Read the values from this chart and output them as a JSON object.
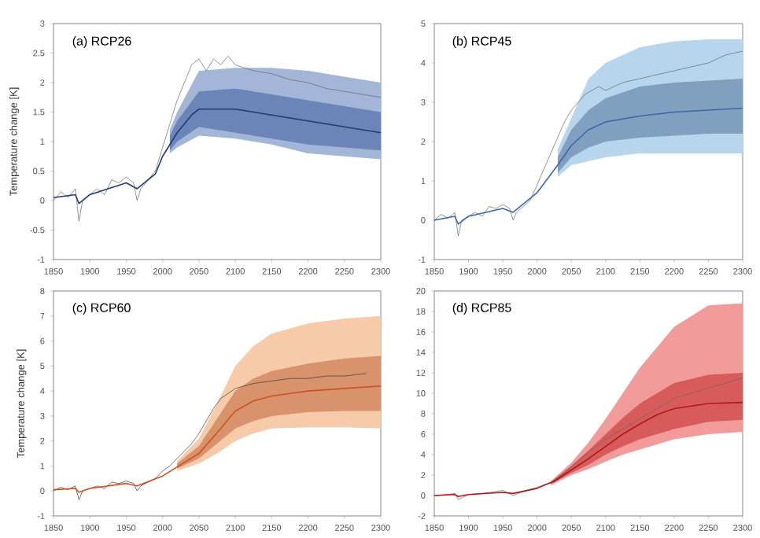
{
  "chart_data": [
    {
      "type": "line",
      "title": "(a) RCP26",
      "ylabel": "Temperature change [K]",
      "xlim": [
        1850,
        2300
      ],
      "ylim": [
        -1,
        3
      ],
      "xticks": [
        1850,
        1900,
        1950,
        2000,
        2050,
        2100,
        2150,
        2200,
        2250,
        2300
      ],
      "yticks": [
        -1,
        -0.5,
        0,
        0.5,
        1,
        1.5,
        2,
        2.5,
        3
      ],
      "series": [
        {
          "color": "#a3b6d8",
          "x": [
            2010,
            2020,
            2050,
            2100,
            2150,
            2200,
            2250,
            2300
          ],
          "values": [
            null,
            null,
            null,
            null,
            null,
            null,
            null,
            null
          ],
          "lower": [
            0.8,
            0.9,
            1.1,
            1.05,
            0.95,
            0.8,
            0.75,
            0.7
          ],
          "upper": [
            1.2,
            1.5,
            2.2,
            2.25,
            2.25,
            2.2,
            2.1,
            2.0
          ]
        },
        {
          "color": "#6b85b9",
          "x": [
            2010,
            2020,
            2050,
            2100,
            2150,
            2200,
            2250,
            2300
          ],
          "values": [
            null,
            null,
            null,
            null,
            null,
            null,
            null,
            null
          ],
          "lower": [
            0.85,
            1.0,
            1.25,
            1.15,
            1.05,
            0.95,
            0.9,
            0.85
          ],
          "upper": [
            1.1,
            1.35,
            1.85,
            1.9,
            1.8,
            1.7,
            1.6,
            1.5
          ]
        },
        {
          "color": "#666666",
          "x": [
            1850,
            1860,
            1870,
            1880,
            1885,
            1890,
            1900,
            1910,
            1920,
            1930,
            1940,
            1950,
            1960,
            1965,
            1970,
            1980,
            1990,
            2000,
            2010,
            2020,
            2030,
            2040,
            2050,
            2060,
            2070,
            2080,
            2090,
            2100,
            2125,
            2150,
            2175,
            2200,
            2225,
            2250,
            2275,
            2300
          ],
          "values": [
            0.0,
            0.15,
            0.05,
            0.2,
            -0.35,
            0.0,
            0.1,
            0.2,
            0.1,
            0.35,
            0.3,
            0.4,
            0.3,
            0.0,
            0.2,
            0.35,
            0.5,
            0.9,
            1.3,
            1.7,
            2.0,
            2.3,
            2.4,
            2.2,
            2.4,
            2.3,
            2.45,
            2.3,
            2.2,
            2.15,
            2.05,
            2.0,
            1.9,
            1.85,
            1.8,
            1.75
          ]
        },
        {
          "color": "#1f3a78",
          "x": [
            1850,
            1880,
            1885,
            1900,
            1950,
            1965,
            1990,
            2000,
            2020,
            2040,
            2050,
            2100,
            2150,
            2200,
            2250,
            2300
          ],
          "values": [
            0.05,
            0.1,
            -0.05,
            0.1,
            0.3,
            0.2,
            0.45,
            0.75,
            1.15,
            1.45,
            1.55,
            1.55,
            1.45,
            1.35,
            1.25,
            1.15
          ]
        }
      ]
    },
    {
      "type": "line",
      "title": "(b) RCP45",
      "xlim": [
        1850,
        2300
      ],
      "ylim": [
        -1,
        5
      ],
      "xticks": [
        1850,
        1900,
        1950,
        2000,
        2050,
        2100,
        2150,
        2200,
        2250,
        2300
      ],
      "yticks": [
        -1,
        0,
        1,
        2,
        3,
        4,
        5
      ],
      "series": [
        {
          "color": "#b8d5ee",
          "x": [
            2030,
            2050,
            2075,
            2100,
            2150,
            2200,
            2250,
            2300
          ],
          "values": [
            null,
            null,
            null,
            null,
            null,
            null,
            null,
            null
          ],
          "lower": [
            1.1,
            1.4,
            1.5,
            1.6,
            1.7,
            1.7,
            1.7,
            1.7
          ],
          "upper": [
            1.8,
            2.6,
            3.6,
            4.0,
            4.4,
            4.55,
            4.6,
            4.6
          ]
        },
        {
          "color": "#819fbf",
          "x": [
            2030,
            2050,
            2075,
            2100,
            2150,
            2200,
            2250,
            2300
          ],
          "values": [
            null,
            null,
            null,
            null,
            null,
            null,
            null,
            null
          ],
          "lower": [
            1.2,
            1.6,
            1.85,
            2.0,
            2.1,
            2.15,
            2.2,
            2.2
          ],
          "upper": [
            1.6,
            2.3,
            2.8,
            3.1,
            3.4,
            3.5,
            3.55,
            3.6
          ]
        },
        {
          "color": "#666666",
          "x": [
            1850,
            1860,
            1870,
            1880,
            1885,
            1890,
            1900,
            1910,
            1920,
            1930,
            1940,
            1950,
            1960,
            1965,
            1970,
            1980,
            1990,
            2000,
            2010,
            2020,
            2030,
            2040,
            2050,
            2060,
            2070,
            2080,
            2090,
            2100,
            2125,
            2150,
            2175,
            2200,
            2225,
            2250,
            2275,
            2300
          ],
          "values": [
            0.0,
            0.15,
            0.05,
            0.2,
            -0.4,
            0.0,
            0.1,
            0.2,
            0.1,
            0.35,
            0.3,
            0.4,
            0.3,
            0.0,
            0.2,
            0.35,
            0.5,
            0.9,
            1.3,
            1.7,
            2.1,
            2.5,
            2.8,
            3.0,
            3.2,
            3.3,
            3.4,
            3.3,
            3.5,
            3.6,
            3.7,
            3.8,
            3.9,
            4.0,
            4.2,
            4.3
          ]
        },
        {
          "color": "#3a66b0",
          "x": [
            1850,
            1880,
            1885,
            1900,
            1950,
            1965,
            2000,
            2030,
            2050,
            2075,
            2100,
            2150,
            2200,
            2250,
            2300
          ],
          "values": [
            0.0,
            0.1,
            -0.1,
            0.1,
            0.3,
            0.2,
            0.7,
            1.4,
            1.9,
            2.3,
            2.5,
            2.65,
            2.75,
            2.8,
            2.85
          ]
        }
      ]
    },
    {
      "type": "line",
      "title": "(c) RCP60",
      "ylabel": "Temperature change [K]",
      "xlim": [
        1850,
        2300
      ],
      "ylim": [
        -1,
        8
      ],
      "xticks": [
        1850,
        1900,
        1950,
        2000,
        2050,
        2100,
        2150,
        2200,
        2250,
        2300
      ],
      "yticks": [
        -1,
        0,
        1,
        2,
        3,
        4,
        5,
        6,
        7,
        8
      ],
      "series": [
        {
          "color": "#f7caa9",
          "x": [
            2020,
            2050,
            2075,
            2100,
            2125,
            2150,
            2200,
            2250,
            2300
          ],
          "values": [
            null,
            null,
            null,
            null,
            null,
            null,
            null,
            null,
            null
          ],
          "lower": [
            0.8,
            1.1,
            1.5,
            2.0,
            2.3,
            2.5,
            2.55,
            2.55,
            2.5
          ],
          "upper": [
            1.2,
            2.1,
            3.5,
            5.0,
            5.8,
            6.3,
            6.7,
            6.9,
            7.0
          ]
        },
        {
          "color": "#d8936d",
          "x": [
            2020,
            2050,
            2075,
            2100,
            2125,
            2150,
            2200,
            2250,
            2300
          ],
          "values": [
            null,
            null,
            null,
            null,
            null,
            null,
            null,
            null,
            null
          ],
          "lower": [
            0.9,
            1.3,
            1.9,
            2.5,
            2.8,
            3.0,
            3.15,
            3.2,
            3.2
          ],
          "upper": [
            1.1,
            1.8,
            2.9,
            4.0,
            4.5,
            4.8,
            5.1,
            5.3,
            5.4
          ]
        },
        {
          "color": "#3a3a3a",
          "x": [
            1850,
            1860,
            1870,
            1880,
            1885,
            1890,
            1900,
            1910,
            1920,
            1930,
            1940,
            1950,
            1960,
            1965,
            1970,
            1980,
            1990,
            2000,
            2010,
            2020,
            2030,
            2040,
            2050,
            2060,
            2070,
            2080,
            2090,
            2100,
            2125,
            2150,
            2175,
            2200,
            2225,
            2250,
            2280
          ],
          "values": [
            0.0,
            0.15,
            0.05,
            0.2,
            -0.35,
            0.0,
            0.1,
            0.2,
            0.1,
            0.35,
            0.3,
            0.4,
            0.3,
            0.0,
            0.2,
            0.35,
            0.5,
            0.8,
            1.0,
            1.3,
            1.6,
            1.9,
            2.3,
            2.8,
            3.3,
            3.7,
            3.9,
            4.1,
            4.3,
            4.4,
            4.5,
            4.5,
            4.6,
            4.6,
            4.7
          ]
        },
        {
          "color": "#d0501c",
          "x": [
            1850,
            1880,
            1885,
            1900,
            1950,
            1965,
            2000,
            2050,
            2080,
            2100,
            2125,
            2150,
            2200,
            2250,
            2300
          ],
          "values": [
            0.05,
            0.1,
            -0.05,
            0.1,
            0.3,
            0.2,
            0.6,
            1.5,
            2.5,
            3.2,
            3.6,
            3.8,
            4.0,
            4.1,
            4.2
          ]
        }
      ]
    },
    {
      "type": "line",
      "title": "(d) RCP85",
      "xlim": [
        1850,
        2300
      ],
      "ylim": [
        -2,
        20
      ],
      "xticks": [
        1850,
        1900,
        1950,
        2000,
        2050,
        2100,
        2150,
        2200,
        2250,
        2300
      ],
      "yticks": [
        -2,
        0,
        2,
        4,
        6,
        8,
        10,
        12,
        14,
        16,
        18,
        20
      ],
      "series": [
        {
          "color": "#f29b9b",
          "x": [
            2020,
            2050,
            2075,
            2100,
            2125,
            2150,
            2200,
            2250,
            2300
          ],
          "values": [
            null,
            null,
            null,
            null,
            null,
            null,
            null,
            null,
            null
          ],
          "lower": [
            1.0,
            2.0,
            2.6,
            3.3,
            4.0,
            4.5,
            5.5,
            6.0,
            6.2
          ],
          "upper": [
            1.4,
            3.2,
            5.2,
            7.5,
            10.0,
            12.5,
            16.5,
            18.6,
            18.8
          ]
        },
        {
          "color": "#d85b5b",
          "x": [
            2020,
            2050,
            2075,
            2100,
            2125,
            2150,
            2200,
            2250,
            2300
          ],
          "values": [
            null,
            null,
            null,
            null,
            null,
            null,
            null,
            null,
            null
          ],
          "lower": [
            1.1,
            2.2,
            3.0,
            4.0,
            4.8,
            5.5,
            6.5,
            7.2,
            7.4
          ],
          "upper": [
            1.3,
            2.9,
            4.4,
            6.0,
            7.6,
            9.0,
            11.0,
            11.8,
            12.0
          ]
        },
        {
          "color": "#666666",
          "x": [
            1850,
            1870,
            1880,
            1885,
            1900,
            1920,
            1940,
            1950,
            1965,
            1980,
            2000,
            2020,
            2040,
            2060,
            2080,
            2100,
            2125,
            2150,
            2175,
            2200,
            2225,
            2250,
            2275,
            2300
          ],
          "values": [
            0.0,
            0.1,
            0.2,
            -0.4,
            0.1,
            0.2,
            0.4,
            0.5,
            0.0,
            0.4,
            0.8,
            1.3,
            2.2,
            3.4,
            4.5,
            5.5,
            6.5,
            7.5,
            8.5,
            9.5,
            10.0,
            10.5,
            11.0,
            11.5
          ]
        },
        {
          "color": "#b01818",
          "x": [
            1850,
            1880,
            1885,
            1900,
            1950,
            1965,
            2000,
            2025,
            2050,
            2075,
            2100,
            2125,
            2150,
            2175,
            2200,
            2250,
            2300
          ],
          "values": [
            0.0,
            0.1,
            -0.1,
            0.1,
            0.3,
            0.2,
            0.7,
            1.4,
            2.5,
            3.6,
            4.8,
            6.0,
            7.0,
            7.9,
            8.5,
            9.0,
            9.1
          ]
        }
      ]
    }
  ]
}
